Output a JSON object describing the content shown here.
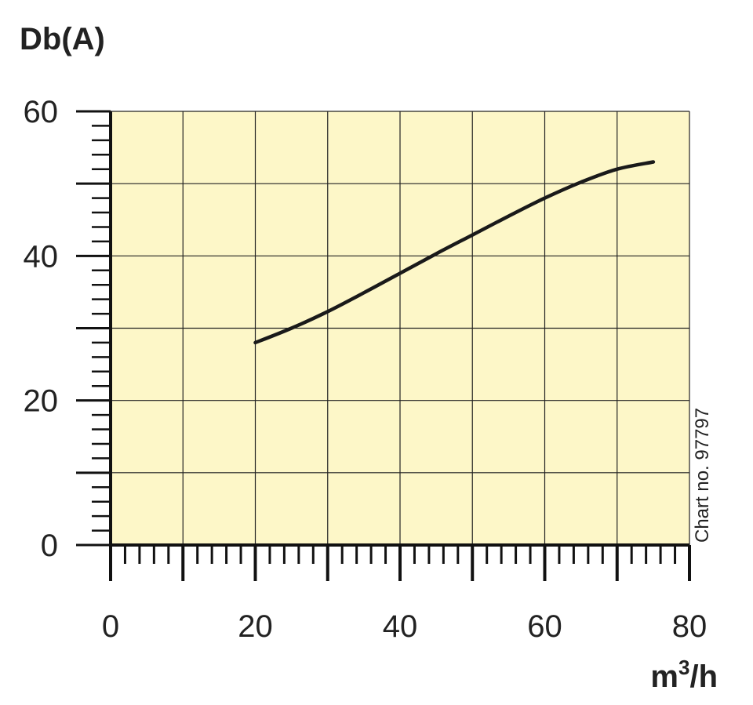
{
  "chart_data": {
    "type": "line",
    "title": "",
    "ylabel": "Db(A)",
    "xlabel_base": "m",
    "xlabel_sup": "3",
    "xlabel_tail": "/h",
    "note": "Chart no. 97797",
    "xlim": [
      0,
      80
    ],
    "ylim": [
      0,
      60
    ],
    "x_ticks": [
      0,
      20,
      40,
      60,
      80
    ],
    "y_ticks": [
      0,
      20,
      40,
      60
    ],
    "x_tick_labels": [
      "0",
      "20",
      "40",
      "60",
      "80"
    ],
    "y_tick_labels": [
      "0",
      "20",
      "40",
      "60"
    ],
    "grid": true,
    "colors": {
      "plot_bg": "#fdf7c8",
      "line": "#1a1a1a",
      "grid": "#222222"
    },
    "series": [
      {
        "x": [
          20,
          25,
          30,
          35,
          40,
          45,
          50,
          55,
          60,
          65,
          70,
          75
        ],
        "values": [
          28.0,
          30.0,
          32.3,
          34.9,
          37.6,
          40.3,
          42.9,
          45.5,
          48.0,
          50.2,
          52.0,
          53.0
        ]
      }
    ]
  }
}
